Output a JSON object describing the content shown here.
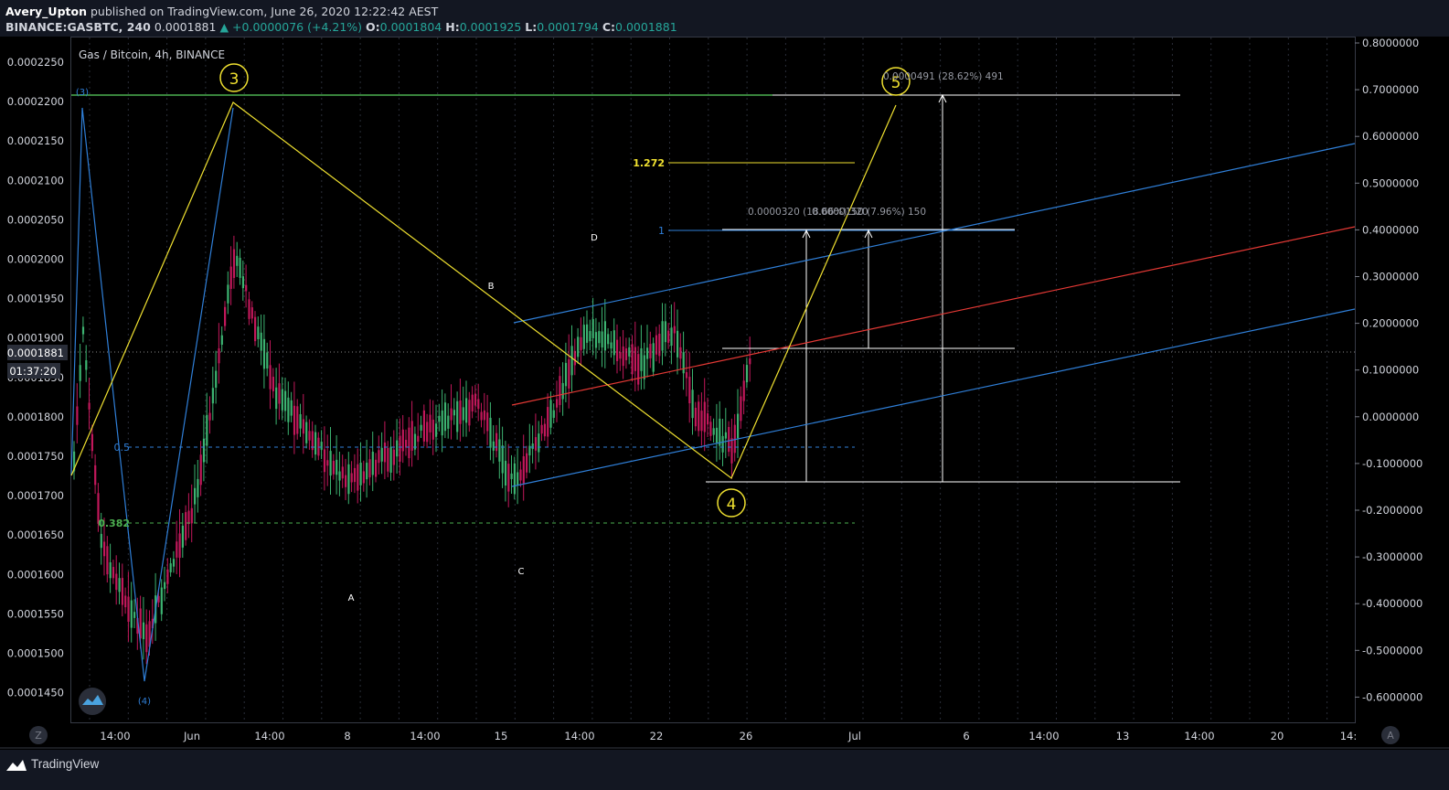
{
  "header": {
    "publisher": "Avery_Upton",
    "published_text": "published on TradingView.com, June 26, 2020 12:22:42 AEST",
    "symbol": "BINANCE:GASBTC, 240",
    "last": "0.0001881",
    "change": "+0.0000076 (+4.21%)",
    "open_label": "O:",
    "open": "0.0001804",
    "high_label": "H:",
    "high": "0.0001925",
    "low_label": "L:",
    "low": "0.0001794",
    "close_label": "C:",
    "close": "0.0001881"
  },
  "chart": {
    "title": "Gas / Bitcoin, 4h, BINANCE",
    "left_axis_ticks": [
      "0.0002250",
      "0.0002200",
      "0.0002150",
      "0.0002100",
      "0.0002050",
      "0.0002000",
      "0.0001950",
      "0.0001900",
      "0.0001850",
      "0.0001800",
      "0.0001750",
      "0.0001700",
      "0.0001650",
      "0.0001600",
      "0.0001550",
      "0.0001500",
      "0.0001450"
    ],
    "right_axis_ticks": [
      "0.8000000",
      "0.7000000",
      "0.6000000",
      "0.5000000",
      "0.4000000",
      "0.3000000",
      "0.2000000",
      "0.1000000",
      "0.0000000",
      "-0.1000000",
      "-0.2000000",
      "-0.3000000",
      "-0.4000000",
      "-0.5000000",
      "-0.6000000"
    ],
    "x_axis_ticks": [
      "14:00",
      "Jun",
      "14:00",
      "8",
      "14:00",
      "15",
      "14:00",
      "22",
      "26",
      "Jul",
      "6",
      "14:00",
      "13",
      "14:00",
      "20",
      "14:"
    ],
    "price_label": "0.0001881",
    "countdown": "01:37:20",
    "wave_labels": {
      "w3": "3",
      "w4": "4",
      "w5": "5",
      "w3_sub": "(3)",
      "w4_sub": "(4)"
    },
    "abcd": {
      "a": "A",
      "b": "B",
      "c": "C",
      "d": "D"
    },
    "fib": {
      "f05": "0.5",
      "f0382": "0.382",
      "f1272": "1.272",
      "f1": "1"
    },
    "measure_big": "0.0000491 (28.62%) 491",
    "measure_small": "0.0000320 (18.66%) 320",
    "measure_small2": "0.0000150 (7.96%) 150",
    "scale_buttons": {
      "left": "Z",
      "right": "A"
    },
    "colors": {
      "up": "#26a69a",
      "candle_up": "#3cb371",
      "candle_down": "#c2185b",
      "yellow": "#f0e130",
      "blue": "#2f7fd8",
      "red": "#e53935",
      "green": "#4caf50"
    }
  },
  "footer": {
    "brand": "TradingView"
  }
}
